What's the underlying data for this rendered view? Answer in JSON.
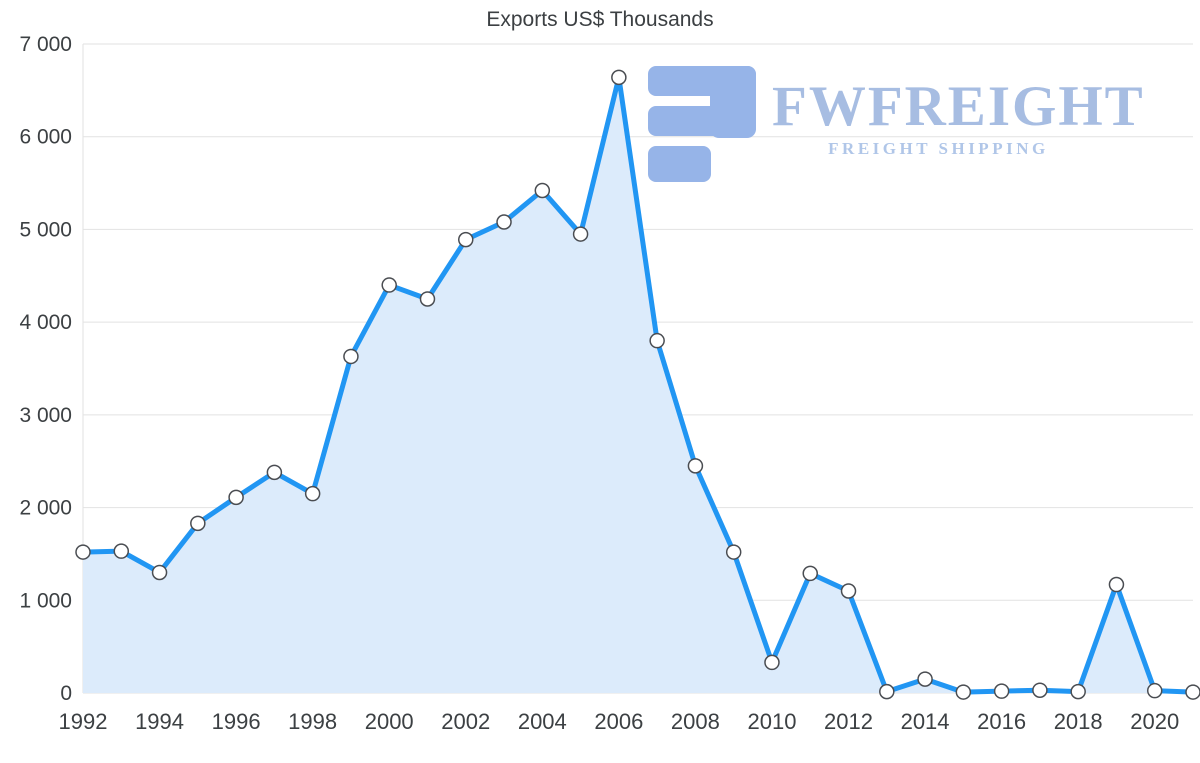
{
  "chart_data": {
    "type": "area",
    "title": "Exports US$ Thousands",
    "x": [
      1992,
      1993,
      1994,
      1995,
      1996,
      1997,
      1998,
      1999,
      2000,
      2001,
      2002,
      2003,
      2004,
      2005,
      2006,
      2007,
      2008,
      2009,
      2010,
      2011,
      2012,
      2013,
      2014,
      2015,
      2016,
      2017,
      2018,
      2019,
      2020,
      2021
    ],
    "values": [
      1520,
      1530,
      1300,
      1830,
      2110,
      2380,
      2150,
      3630,
      4400,
      4250,
      4890,
      5080,
      5420,
      4950,
      6640,
      3800,
      2450,
      1520,
      330,
      1290,
      1100,
      15,
      150,
      10,
      20,
      30,
      15,
      1170,
      25,
      10
    ],
    "x_tick_labels": [
      "1992",
      "1994",
      "1996",
      "1998",
      "2000",
      "2002",
      "2004",
      "2006",
      "2008",
      "2010",
      "2012",
      "2014",
      "2016",
      "2018",
      "2020"
    ],
    "y_ticks": [
      0,
      1000,
      2000,
      3000,
      4000,
      5000,
      6000,
      7000
    ],
    "y_tick_labels": [
      "0",
      "1 000",
      "2 000",
      "3 000",
      "4 000",
      "5 000",
      "6 000",
      "7 000"
    ],
    "ylim": [
      0,
      7000
    ],
    "grid": true,
    "legend": "none",
    "line_color": "#2196f3",
    "area_color": "#dcebfb",
    "marker_fill": "#ffffff",
    "marker_stroke": "#4a4d52",
    "grid_color": "#e2e2e2",
    "label_color": "#3c4043"
  },
  "watermark": {
    "brand": "FWFREIGHT",
    "tagline": "FREIGHT SHIPPING",
    "brand_color": "#a7bde2",
    "icon_color": "#96b4e8"
  }
}
